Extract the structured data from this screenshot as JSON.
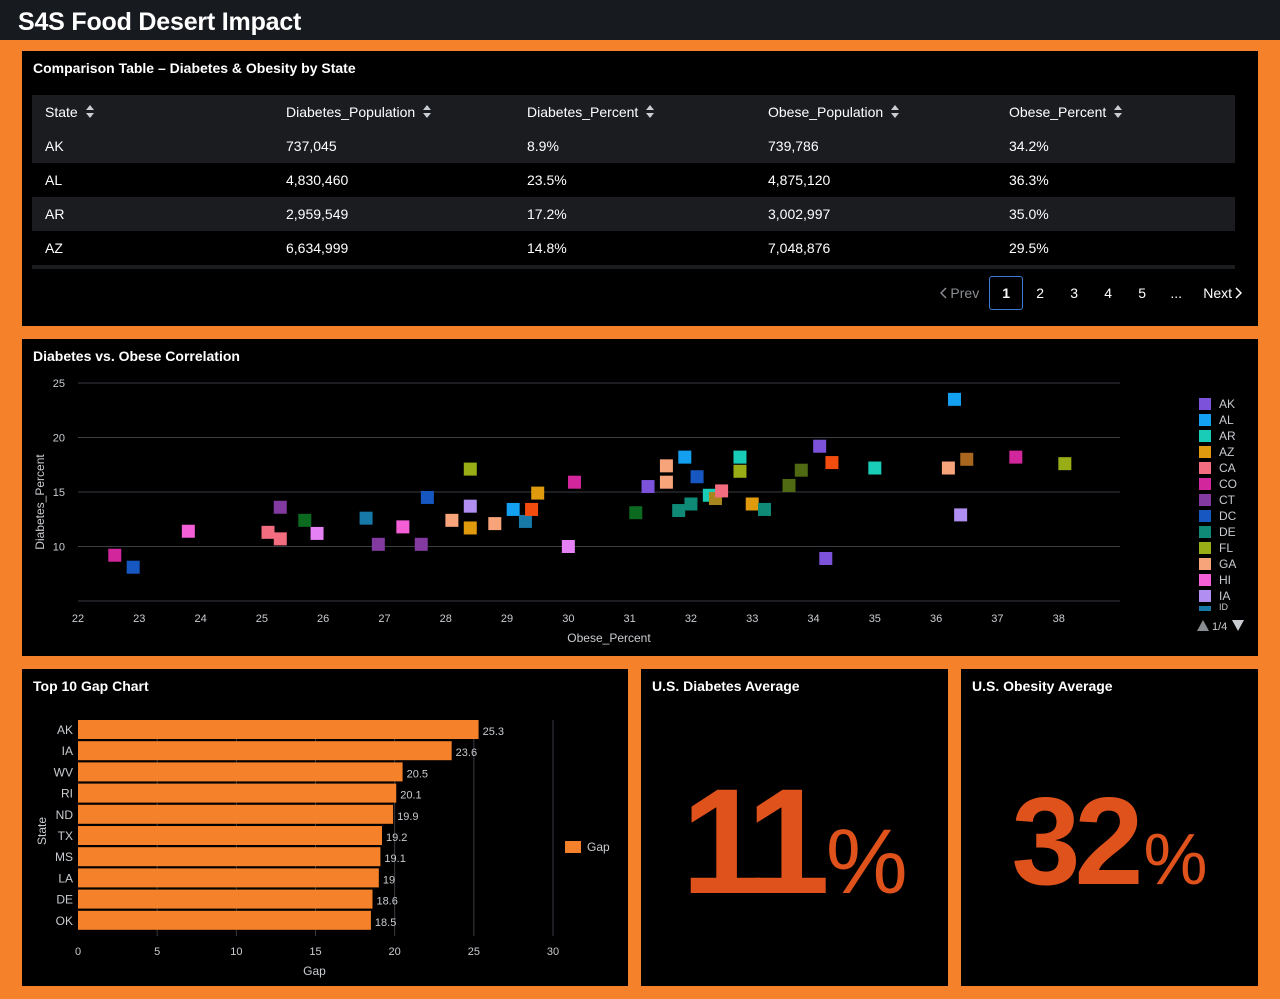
{
  "app": {
    "title": "S4S Food Desert Impact"
  },
  "table_panel": {
    "title": "Comparison Table – Diabetes & Obesity by State",
    "columns": [
      "State",
      "Diabetes_Population",
      "Diabetes_Percent",
      "Obese_Population",
      "Obese_Percent"
    ],
    "rows": [
      [
        "AK",
        "737,045",
        "8.9%",
        "739,786",
        "34.2%"
      ],
      [
        "AL",
        "4,830,460",
        "23.5%",
        "4,875,120",
        "36.3%"
      ],
      [
        "AR",
        "2,959,549",
        "17.2%",
        "3,002,997",
        "35.0%"
      ],
      [
        "AZ",
        "6,634,999",
        "14.8%",
        "7,048,876",
        "29.5%"
      ]
    ],
    "pagination": {
      "prev": "Prev",
      "pages": [
        "1",
        "2",
        "3",
        "4",
        "5"
      ],
      "ellipsis": "...",
      "next": "Next",
      "current": "1"
    }
  },
  "scatter_panel": {
    "title": "Diabetes vs. Obese Correlation",
    "legend_page": "1/4",
    "legend_partial": "ID",
    "chart_data": {
      "type": "scatter",
      "xlabel": "Obese_Percent",
      "ylabel": "Diabetes_Percent",
      "xlim": [
        22,
        39
      ],
      "ylim": [
        5,
        25
      ],
      "xticks": [
        22,
        23,
        24,
        25,
        26,
        27,
        28,
        29,
        30,
        31,
        32,
        33,
        34,
        35,
        36,
        37,
        38
      ],
      "yticks": [
        10,
        15,
        20,
        25
      ],
      "grid": true,
      "legend_position": "right",
      "legend": [
        {
          "label": "AK",
          "color": "#7b52d9"
        },
        {
          "label": "AL",
          "color": "#14a0f0"
        },
        {
          "label": "AR",
          "color": "#18ccb8"
        },
        {
          "label": "AZ",
          "color": "#e09a0e"
        },
        {
          "label": "CA",
          "color": "#f26d7f"
        },
        {
          "label": "CO",
          "color": "#d1269c"
        },
        {
          "label": "CT",
          "color": "#833aa0"
        },
        {
          "label": "DC",
          "color": "#1657c2"
        },
        {
          "label": "DE",
          "color": "#0e8a76"
        },
        {
          "label": "FL",
          "color": "#99ad16"
        },
        {
          "label": "GA",
          "color": "#f7a47a"
        },
        {
          "label": "HI",
          "color": "#f45fd7"
        },
        {
          "label": "IA",
          "color": "#b08ef2"
        }
      ],
      "points": [
        {
          "x": 22.6,
          "y": 9.2,
          "color": "#d1269c"
        },
        {
          "x": 22.9,
          "y": 8.1,
          "color": "#1657c2"
        },
        {
          "x": 23.8,
          "y": 11.4,
          "color": "#f45fd7"
        },
        {
          "x": 25.1,
          "y": 11.3,
          "color": "#f26d7f"
        },
        {
          "x": 25.3,
          "y": 10.7,
          "color": "#f26d7f"
        },
        {
          "x": 25.3,
          "y": 13.6,
          "color": "#833aa0"
        },
        {
          "x": 25.7,
          "y": 12.4,
          "color": "#0b6a1f"
        },
        {
          "x": 25.9,
          "y": 11.2,
          "color": "#e580f5"
        },
        {
          "x": 26.7,
          "y": 12.6,
          "color": "#1679a8"
        },
        {
          "x": 26.9,
          "y": 10.2,
          "color": "#833aa0"
        },
        {
          "x": 27.3,
          "y": 11.8,
          "color": "#f45fd7"
        },
        {
          "x": 27.6,
          "y": 10.2,
          "color": "#833aa0"
        },
        {
          "x": 27.7,
          "y": 14.5,
          "color": "#1657c2"
        },
        {
          "x": 28.1,
          "y": 12.4,
          "color": "#f7a47a"
        },
        {
          "x": 28.4,
          "y": 17.1,
          "color": "#99ad16"
        },
        {
          "x": 28.4,
          "y": 13.7,
          "color": "#b08ef2"
        },
        {
          "x": 28.4,
          "y": 11.7,
          "color": "#e09a0e"
        },
        {
          "x": 28.8,
          "y": 12.1,
          "color": "#f7a47a"
        },
        {
          "x": 29.1,
          "y": 13.4,
          "color": "#14a0f0"
        },
        {
          "x": 29.3,
          "y": 12.3,
          "color": "#1679a8"
        },
        {
          "x": 29.4,
          "y": 13.4,
          "color": "#f24d0e"
        },
        {
          "x": 29.5,
          "y": 14.9,
          "color": "#e09a0e"
        },
        {
          "x": 30.0,
          "y": 10.0,
          "color": "#e580f5"
        },
        {
          "x": 30.1,
          "y": 15.9,
          "color": "#d1269c"
        },
        {
          "x": 31.1,
          "y": 13.1,
          "color": "#0b6a1f"
        },
        {
          "x": 31.3,
          "y": 15.5,
          "color": "#7b52d9"
        },
        {
          "x": 31.6,
          "y": 17.4,
          "color": "#f7a47a"
        },
        {
          "x": 31.6,
          "y": 15.9,
          "color": "#f7a47a"
        },
        {
          "x": 31.8,
          "y": 13.3,
          "color": "#0e8a76"
        },
        {
          "x": 31.9,
          "y": 18.2,
          "color": "#14a0f0"
        },
        {
          "x": 32.0,
          "y": 13.9,
          "color": "#0e8a76"
        },
        {
          "x": 32.1,
          "y": 16.4,
          "color": "#1657c2"
        },
        {
          "x": 32.3,
          "y": 14.7,
          "color": "#18ccb8"
        },
        {
          "x": 32.4,
          "y": 14.4,
          "color": "#a8861e"
        },
        {
          "x": 32.5,
          "y": 15.1,
          "color": "#f26d7f"
        },
        {
          "x": 32.8,
          "y": 18.2,
          "color": "#18ccb8"
        },
        {
          "x": 32.8,
          "y": 16.9,
          "color": "#99ad16"
        },
        {
          "x": 33.0,
          "y": 13.9,
          "color": "#e09a0e"
        },
        {
          "x": 33.2,
          "y": 13.4,
          "color": "#0e8a76"
        },
        {
          "x": 33.6,
          "y": 15.6,
          "color": "#4f6a12"
        },
        {
          "x": 33.8,
          "y": 17.0,
          "color": "#4f6a12"
        },
        {
          "x": 34.1,
          "y": 19.2,
          "color": "#7b52d9"
        },
        {
          "x": 34.2,
          "y": 8.9,
          "color": "#7b52d9"
        },
        {
          "x": 34.3,
          "y": 17.7,
          "color": "#f24d0e"
        },
        {
          "x": 35.0,
          "y": 17.2,
          "color": "#18ccb8"
        },
        {
          "x": 36.2,
          "y": 17.2,
          "color": "#f7a47a"
        },
        {
          "x": 36.3,
          "y": 23.5,
          "color": "#14a0f0"
        },
        {
          "x": 36.4,
          "y": 12.9,
          "color": "#b08ef2"
        },
        {
          "x": 36.5,
          "y": 18.0,
          "color": "#a8661e"
        },
        {
          "x": 37.3,
          "y": 18.2,
          "color": "#d1269c"
        },
        {
          "x": 38.1,
          "y": 17.6,
          "color": "#99ad16"
        }
      ]
    }
  },
  "bar_panel": {
    "title": "Top 10 Gap Chart",
    "chart_data": {
      "type": "bar",
      "orientation": "horizontal",
      "categories": [
        "AK",
        "IA",
        "WV",
        "RI",
        "ND",
        "TX",
        "MS",
        "LA",
        "DE",
        "OK"
      ],
      "series": [
        {
          "name": "Gap",
          "values": [
            25.3,
            23.6,
            20.5,
            20.1,
            19.9,
            19.2,
            19.1,
            19,
            18.6,
            18.5
          ],
          "color": "#f5822a"
        }
      ],
      "value_labels": [
        "25.3",
        "23.6",
        "20.5",
        "20.1",
        "19.9",
        "19.2",
        "19.1",
        "19",
        "18.6",
        "18.5"
      ],
      "xlabel": "Gap",
      "ylabel": "State",
      "xlim": [
        0,
        30
      ],
      "xticks": [
        0,
        5,
        10,
        15,
        20,
        25,
        30
      ],
      "legend_position": "right"
    }
  },
  "diabetes_panel": {
    "title": "U.S. Diabetes Average",
    "value": "11",
    "unit": "%"
  },
  "obesity_panel": {
    "title": "U.S. Obesity Average",
    "value": "32",
    "unit": "%"
  },
  "colors": {
    "accent": "#f5822a",
    "kpi": "#e0521c",
    "panel_bg": "#000000",
    "topbar_bg": "#171a1f"
  }
}
